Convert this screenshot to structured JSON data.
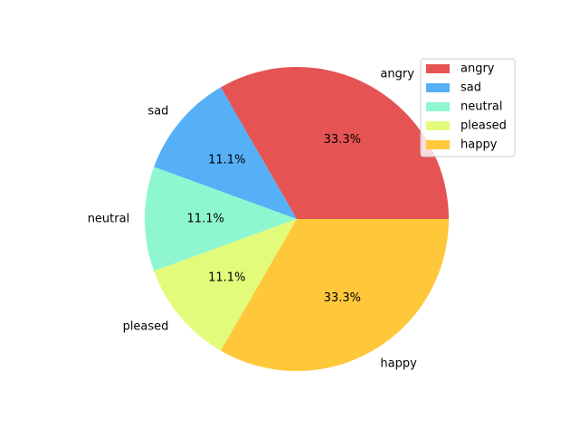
{
  "chart_data": {
    "type": "pie",
    "categories": [
      "angry",
      "sad",
      "neutral",
      "pleased",
      "happy"
    ],
    "values": [
      33.3,
      11.1,
      11.1,
      11.1,
      33.3
    ],
    "percent_labels": [
      "33.3%",
      "11.1%",
      "11.1%",
      "11.1%",
      "33.3%"
    ],
    "colors": [
      "#e55353",
      "#55b0f7",
      "#8ff7d0",
      "#e2fb7b",
      "#ffc83a"
    ],
    "legend": {
      "entries": [
        "angry",
        "sad",
        "neutral",
        "pleased",
        "happy"
      ],
      "placement": "upper-right"
    },
    "start_angle_degrees": 0,
    "direction": "counterclockwise"
  }
}
